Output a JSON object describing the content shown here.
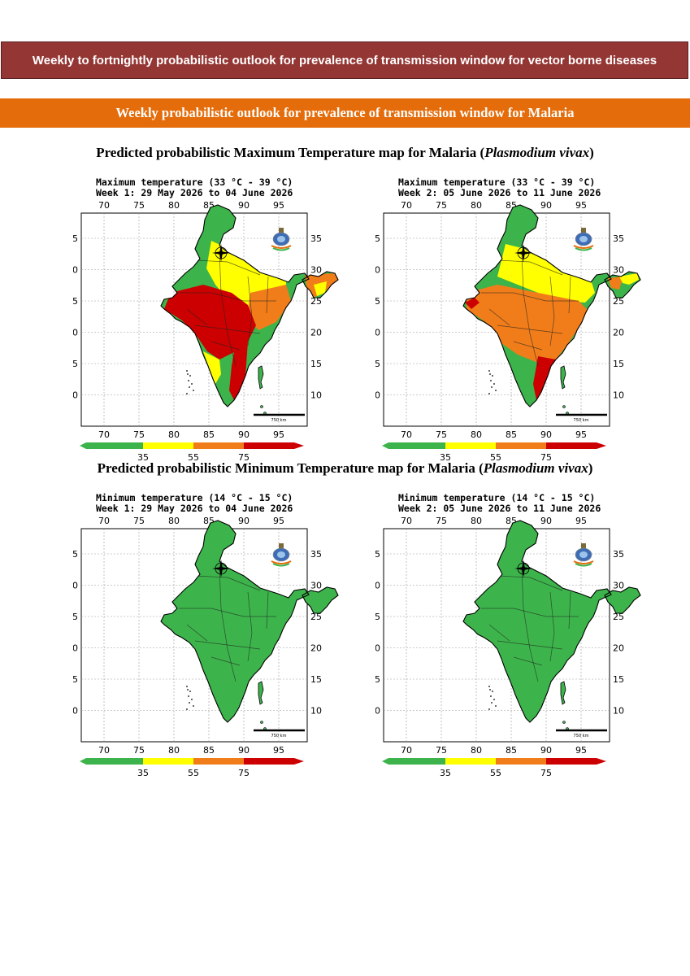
{
  "header": {
    "banner": "Weekly to fortnightly probabilistic outlook for prevalence of transmission window for vector borne diseases",
    "sub_banner": "Weekly probabilistic outlook for prevalence of transmission window for Malaria"
  },
  "sections": [
    {
      "title_prefix": "Predicted probabilistic Maximum Temperature map for Malaria (",
      "title_italic": "Plasmodium vivax",
      "title_suffix": ")",
      "maps": [
        {
          "line1": "Maximum temperature (33 °C - 39 °C)",
          "line2": "Week 1: 29 May 2026 to 04 June 2026"
        },
        {
          "line1": "Maximum temperature (33 °C - 39 °C)",
          "line2": "Week 2: 05 June 2026 to 11 June 2026"
        }
      ]
    },
    {
      "title_prefix": "Predicted probabilistic Minimum Temperature map for Malaria (",
      "title_italic": "Plasmodium vivax",
      "title_suffix": ")",
      "maps": [
        {
          "line1": "Minimum temperature (14 °C - 15 °C)",
          "line2": "Week 1: 29 May 2026 to 04 June 2026"
        },
        {
          "line1": "Minimum temperature (14 °C - 15 °C)",
          "line2": "Week 2: 05 June 2026 to 11 June 2026"
        }
      ]
    }
  ],
  "axes": {
    "x_ticks": [
      "70",
      "75",
      "80",
      "85",
      "90",
      "95"
    ],
    "y_ticks": [
      "35",
      "30",
      "25",
      "20",
      "15",
      "10"
    ]
  },
  "colorbar": {
    "labels": [
      "35",
      "55",
      "75"
    ],
    "colors": [
      "#3cb44b",
      "#ffff00",
      "#f07d1a",
      "#cc0000"
    ]
  },
  "scale_bar": "750 km",
  "colors": {
    "banner": "#943634",
    "sub_banner": "#e46c0a",
    "green": "#3cb44b",
    "yellow": "#ffff00",
    "orange": "#f07d1a",
    "red": "#cc0000"
  }
}
